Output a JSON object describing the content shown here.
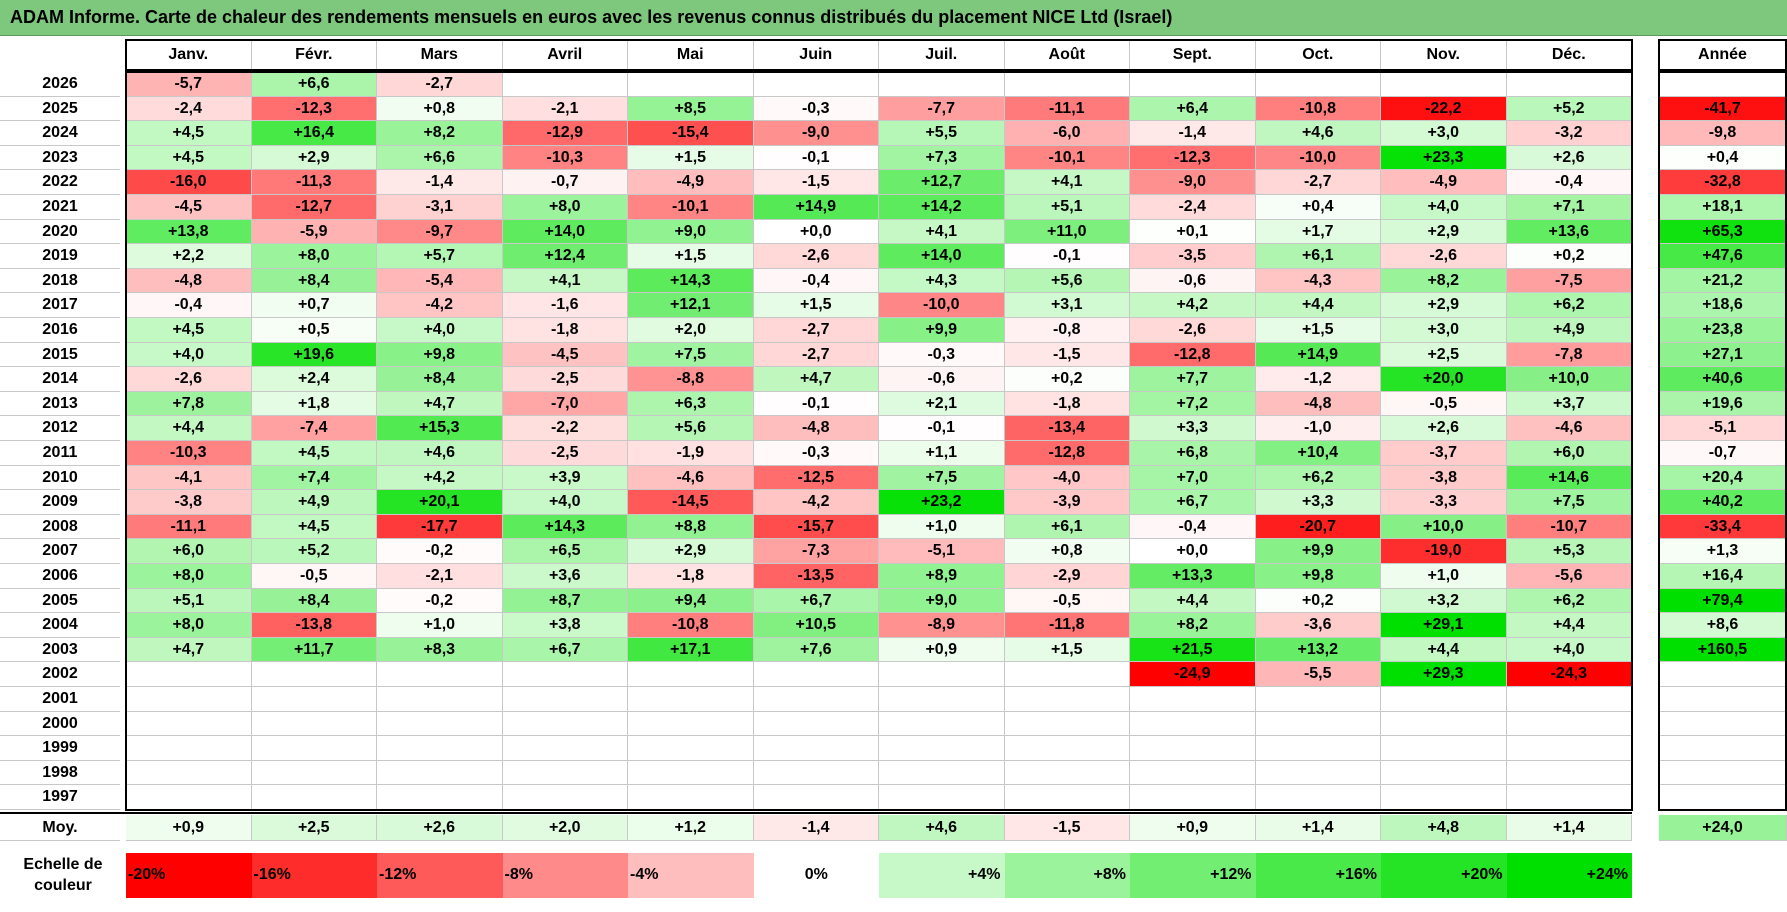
{
  "title": "ADAM Informe. Carte de chaleur des rendements mensuels en euros avec les revenus connus distribués du placement NICE Ltd (Israel)",
  "chart_data": {
    "type": "heatmap",
    "months": [
      "Janv.",
      "Févr.",
      "Mars",
      "Avril",
      "Mai",
      "Juin",
      "Juil.",
      "Août",
      "Sept.",
      "Oct.",
      "Nov.",
      "Déc."
    ],
    "annual_header": "Année",
    "rows": [
      {
        "year": "2026",
        "values": [
          "-5,7",
          "+6,6",
          "-2,7",
          "",
          "",
          "",
          "",
          "",
          "",
          "",
          "",
          ""
        ],
        "annual": ""
      },
      {
        "year": "2025",
        "values": [
          "-2,4",
          "-12,3",
          "+0,8",
          "-2,1",
          "+8,5",
          "-0,3",
          "-7,7",
          "-11,1",
          "+6,4",
          "-10,8",
          "-22,2",
          "+5,2"
        ],
        "annual": "-41,7"
      },
      {
        "year": "2024",
        "values": [
          "+4,5",
          "+16,4",
          "+8,2",
          "-12,9",
          "-15,4",
          "-9,0",
          "+5,5",
          "-6,0",
          "-1,4",
          "+4,6",
          "+3,0",
          "-3,2"
        ],
        "annual": "-9,8"
      },
      {
        "year": "2023",
        "values": [
          "+4,5",
          "+2,9",
          "+6,6",
          "-10,3",
          "+1,5",
          "-0,1",
          "+7,3",
          "-10,1",
          "-12,3",
          "-10,0",
          "+23,3",
          "+2,6"
        ],
        "annual": "+0,4"
      },
      {
        "year": "2022",
        "values": [
          "-16,0",
          "-11,3",
          "-1,4",
          "-0,7",
          "-4,9",
          "-1,5",
          "+12,7",
          "+4,1",
          "-9,0",
          "-2,7",
          "-4,9",
          "-0,4"
        ],
        "annual": "-32,8"
      },
      {
        "year": "2021",
        "values": [
          "-4,5",
          "-12,7",
          "-3,1",
          "+8,0",
          "-10,1",
          "+14,9",
          "+14,2",
          "+5,1",
          "-2,4",
          "+0,4",
          "+4,0",
          "+7,1"
        ],
        "annual": "+18,1"
      },
      {
        "year": "2020",
        "values": [
          "+13,8",
          "-5,9",
          "-9,7",
          "+14,0",
          "+9,0",
          "+0,0",
          "+4,1",
          "+11,0",
          "+0,1",
          "+1,7",
          "+2,9",
          "+13,6"
        ],
        "annual": "+65,3"
      },
      {
        "year": "2019",
        "values": [
          "+2,2",
          "+8,0",
          "+5,7",
          "+12,4",
          "+1,5",
          "-2,6",
          "+14,0",
          "-0,1",
          "-3,5",
          "+6,1",
          "-2,6",
          "+0,2"
        ],
        "annual": "+47,6"
      },
      {
        "year": "2018",
        "values": [
          "-4,8",
          "+8,4",
          "-5,4",
          "+4,1",
          "+14,3",
          "-0,4",
          "+4,3",
          "+5,6",
          "-0,6",
          "-4,3",
          "+8,2",
          "-7,5"
        ],
        "annual": "+21,2"
      },
      {
        "year": "2017",
        "values": [
          "-0,4",
          "+0,7",
          "-4,2",
          "-1,6",
          "+12,1",
          "+1,5",
          "-10,0",
          "+3,1",
          "+4,2",
          "+4,4",
          "+2,9",
          "+6,2"
        ],
        "annual": "+18,6"
      },
      {
        "year": "2016",
        "values": [
          "+4,5",
          "+0,5",
          "+4,0",
          "-1,8",
          "+2,0",
          "-2,7",
          "+9,9",
          "-0,8",
          "-2,6",
          "+1,5",
          "+3,0",
          "+4,9"
        ],
        "annual": "+23,8"
      },
      {
        "year": "2015",
        "values": [
          "+4,0",
          "+19,6",
          "+9,8",
          "-4,5",
          "+7,5",
          "-2,7",
          "-0,3",
          "-1,5",
          "-12,8",
          "+14,9",
          "+2,5",
          "-7,8"
        ],
        "annual": "+27,1"
      },
      {
        "year": "2014",
        "values": [
          "-2,6",
          "+2,4",
          "+8,4",
          "-2,5",
          "-8,8",
          "+4,7",
          "-0,6",
          "+0,2",
          "+7,7",
          "-1,2",
          "+20,0",
          "+10,0"
        ],
        "annual": "+40,6"
      },
      {
        "year": "2013",
        "values": [
          "+7,8",
          "+1,8",
          "+4,7",
          "-7,0",
          "+6,3",
          "-0,1",
          "+2,1",
          "-1,8",
          "+7,2",
          "-4,8",
          "-0,5",
          "+3,7"
        ],
        "annual": "+19,6"
      },
      {
        "year": "2012",
        "values": [
          "+4,4",
          "-7,4",
          "+15,3",
          "-2,2",
          "+5,6",
          "-4,8",
          "-0,1",
          "-13,4",
          "+3,3",
          "-1,0",
          "+2,6",
          "-4,6"
        ],
        "annual": "-5,1"
      },
      {
        "year": "2011",
        "values": [
          "-10,3",
          "+4,5",
          "+4,6",
          "-2,5",
          "-1,9",
          "-0,3",
          "+1,1",
          "-12,8",
          "+6,8",
          "+10,4",
          "-3,7",
          "+6,0"
        ],
        "annual": "-0,7"
      },
      {
        "year": "2010",
        "values": [
          "-4,1",
          "+7,4",
          "+4,2",
          "+3,9",
          "-4,6",
          "-12,5",
          "+7,5",
          "-4,0",
          "+7,0",
          "+6,2",
          "-3,8",
          "+14,6"
        ],
        "annual": "+20,4"
      },
      {
        "year": "2009",
        "values": [
          "-3,8",
          "+4,9",
          "+20,1",
          "+4,0",
          "-14,5",
          "-4,2",
          "+23,2",
          "-3,9",
          "+6,7",
          "+3,3",
          "-3,3",
          "+7,5"
        ],
        "annual": "+40,2"
      },
      {
        "year": "2008",
        "values": [
          "-11,1",
          "+4,5",
          "-17,7",
          "+14,3",
          "+8,8",
          "-15,7",
          "+1,0",
          "+6,1",
          "-0,4",
          "-20,7",
          "+10,0",
          "-10,7"
        ],
        "annual": "-33,4"
      },
      {
        "year": "2007",
        "values": [
          "+6,0",
          "+5,2",
          "-0,2",
          "+6,5",
          "+2,9",
          "-7,3",
          "-5,1",
          "+0,8",
          "+0,0",
          "+9,9",
          "-19,0",
          "+5,3"
        ],
        "annual": "+1,3"
      },
      {
        "year": "2006",
        "values": [
          "+8,0",
          "-0,5",
          "-2,1",
          "+3,6",
          "-1,8",
          "-13,5",
          "+8,9",
          "-2,9",
          "+13,3",
          "+9,8",
          "+1,0",
          "-5,6"
        ],
        "annual": "+16,4"
      },
      {
        "year": "2005",
        "values": [
          "+5,1",
          "+8,4",
          "-0,2",
          "+8,7",
          "+9,4",
          "+6,7",
          "+9,0",
          "-0,5",
          "+4,4",
          "+0,2",
          "+3,2",
          "+6,2"
        ],
        "annual": "+79,4"
      },
      {
        "year": "2004",
        "values": [
          "+8,0",
          "-13,8",
          "+1,0",
          "+3,8",
          "-10,8",
          "+10,5",
          "-8,9",
          "-11,8",
          "+8,2",
          "-3,6",
          "+29,1",
          "+4,4"
        ],
        "annual": "+8,6"
      },
      {
        "year": "2003",
        "values": [
          "+4,7",
          "+11,7",
          "+8,3",
          "+6,7",
          "+17,1",
          "+7,6",
          "+0,9",
          "+1,5",
          "+21,5",
          "+13,2",
          "+4,4",
          "+4,0"
        ],
        "annual": "+160,5"
      },
      {
        "year": "2002",
        "values": [
          "",
          "",
          "",
          "",
          "",
          "",
          "",
          "",
          "-24,9",
          "-5,5",
          "+29,3",
          "-24,3"
        ],
        "annual": ""
      },
      {
        "year": "2001",
        "values": [
          "",
          "",
          "",
          "",
          "",
          "",
          "",
          "",
          "",
          "",
          "",
          ""
        ],
        "annual": ""
      },
      {
        "year": "2000",
        "values": [
          "",
          "",
          "",
          "",
          "",
          "",
          "",
          "",
          "",
          "",
          "",
          ""
        ],
        "annual": ""
      },
      {
        "year": "1999",
        "values": [
          "",
          "",
          "",
          "",
          "",
          "",
          "",
          "",
          "",
          "",
          "",
          ""
        ],
        "annual": ""
      },
      {
        "year": "1998",
        "values": [
          "",
          "",
          "",
          "",
          "",
          "",
          "",
          "",
          "",
          "",
          "",
          ""
        ],
        "annual": ""
      },
      {
        "year": "1997",
        "values": [
          "",
          "",
          "",
          "",
          "",
          "",
          "",
          "",
          "",
          "",
          "",
          ""
        ],
        "annual": ""
      }
    ],
    "average": {
      "label": "Moy.",
      "values": [
        "+0,9",
        "+2,5",
        "+2,6",
        "+2,0",
        "+1,2",
        "-1,4",
        "+4,6",
        "-1,5",
        "+0,9",
        "+1,4",
        "+4,8",
        "+1,4"
      ],
      "annual": "+24,0"
    },
    "scale": {
      "label_line1": "Echelle de",
      "label_line2": "couleur",
      "steps": [
        "-20%",
        "-16%",
        "-12%",
        "-8%",
        "-4%",
        "0%",
        "+4%",
        "+8%",
        "+12%",
        "+16%",
        "+20%",
        "+24%"
      ],
      "step_values": [
        -20,
        -16,
        -12,
        -8,
        -4,
        0,
        4,
        8,
        12,
        16,
        20,
        24
      ]
    },
    "colors": {
      "negative_max": "#ff0000",
      "neutral": "#ffffff",
      "positive_max": "#00e000"
    }
  }
}
